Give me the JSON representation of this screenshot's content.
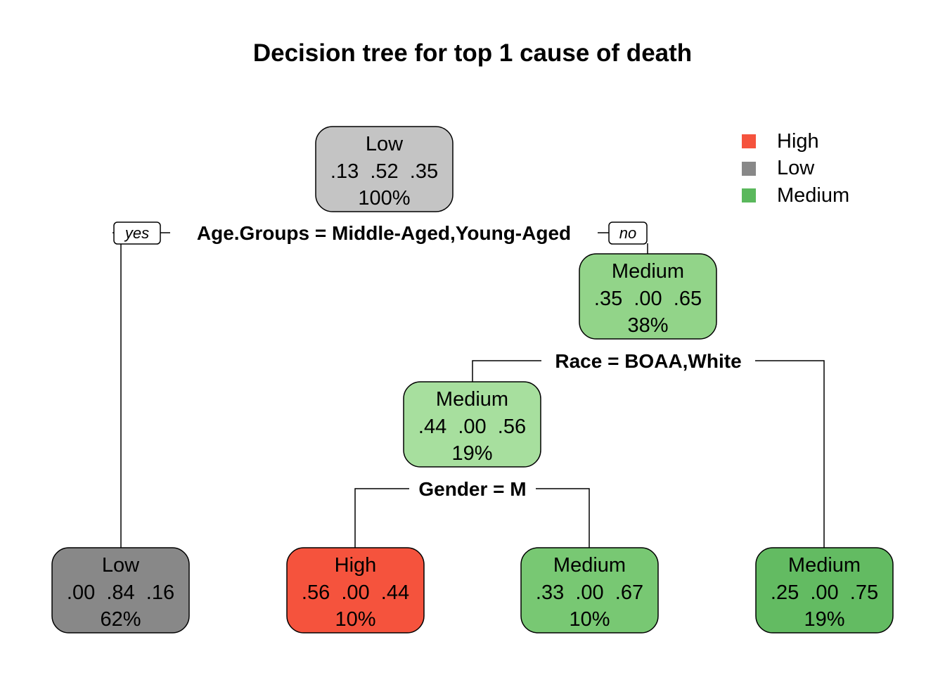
{
  "title": "Decision tree for top 1 cause of death",
  "legend": [
    {
      "label": "High",
      "color": "#f5533d"
    },
    {
      "label": "Low",
      "color": "#888888"
    },
    {
      "label": "Medium",
      "color": "#5ab85c"
    }
  ],
  "branch_labels": {
    "yes": "yes",
    "no": "no"
  },
  "nodes": [
    {
      "id": "root",
      "label": "Low",
      "probs": ".13  .52  .35",
      "percent": "100%",
      "fill": "#c4c4c4"
    },
    {
      "id": "n3",
      "label": "Medium",
      "probs": ".35  .00  .65",
      "percent": "38%",
      "fill": "#92d489"
    },
    {
      "id": "n6",
      "label": "Medium",
      "probs": ".44  .00  .56",
      "percent": "19%",
      "fill": "#a7df9e"
    },
    {
      "id": "n2",
      "label": "Low",
      "probs": ".00  .84  .16",
      "percent": "62%",
      "fill": "#888888"
    },
    {
      "id": "n12",
      "label": "High",
      "probs": ".56  .00  .44",
      "percent": "10%",
      "fill": "#f5533d"
    },
    {
      "id": "n13",
      "label": "Medium",
      "probs": ".33  .00  .67",
      "percent": "10%",
      "fill": "#78c873"
    },
    {
      "id": "n7",
      "label": "Medium",
      "probs": ".25  .00  .75",
      "percent": "19%",
      "fill": "#63bb62"
    }
  ],
  "splits": [
    {
      "id": "s_root",
      "text": "Age.Groups = Middle-Aged,Young-Aged"
    },
    {
      "id": "s_n3",
      "text": "Race = BOAA,White"
    },
    {
      "id": "s_n6",
      "text": "Gender = M"
    }
  ]
}
